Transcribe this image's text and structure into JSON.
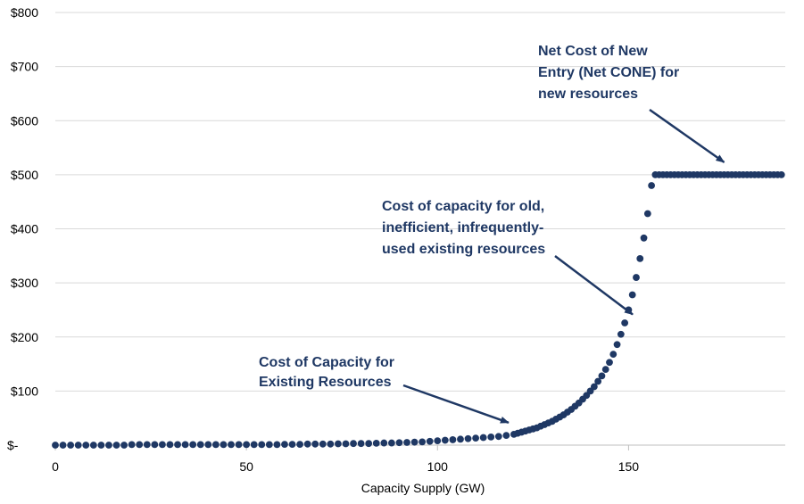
{
  "chart_data": {
    "type": "scatter",
    "title": "",
    "xlabel": "Capacity Supply (GW)",
    "ylabel": "",
    "xlim": [
      0,
      191
    ],
    "ylim": [
      0,
      800
    ],
    "x_ticks": [
      0,
      50,
      100,
      150
    ],
    "x_tick_labels": [
      "0",
      "50",
      "100",
      "150"
    ],
    "y_ticks": [
      0,
      100,
      200,
      300,
      400,
      500,
      600,
      700,
      800
    ],
    "y_tick_labels": [
      "$-",
      "$100",
      "$200",
      "$300",
      "$400",
      "$500",
      "$600",
      "$700",
      "$800"
    ],
    "grid": "horizontal",
    "legend": "none",
    "colors": {
      "points": "#1f3864",
      "annotations": "#1f3864",
      "grid": "#d9d9d9",
      "axis": "#bfbfbf"
    },
    "series": [
      {
        "points": [
          [
            0,
            0.0
          ],
          [
            2,
            0.0
          ],
          [
            4,
            0.0
          ],
          [
            6,
            0.0
          ],
          [
            8,
            0.0
          ],
          [
            10,
            0.0
          ],
          [
            12,
            0.0
          ],
          [
            14,
            0.0
          ],
          [
            16,
            0.0
          ],
          [
            18,
            0.0
          ],
          [
            20,
            1.0
          ],
          [
            22,
            1.0
          ],
          [
            24,
            1.0
          ],
          [
            26,
            1.0
          ],
          [
            28,
            1.0
          ],
          [
            30,
            1.0
          ],
          [
            32,
            1.0
          ],
          [
            34,
            1.0
          ],
          [
            36,
            1.0
          ],
          [
            38,
            1.0
          ],
          [
            40,
            1.0
          ],
          [
            42,
            1.0
          ],
          [
            44,
            1.0
          ],
          [
            46,
            1.0
          ],
          [
            48,
            1.0
          ],
          [
            50,
            1.0
          ],
          [
            52,
            1.0
          ],
          [
            54,
            1.0
          ],
          [
            56,
            1.0
          ],
          [
            58,
            1.0
          ],
          [
            60,
            1.5
          ],
          [
            62,
            1.5
          ],
          [
            64,
            1.5
          ],
          [
            66,
            2.0
          ],
          [
            68,
            2.0
          ],
          [
            70,
            2.0
          ],
          [
            72,
            2.0
          ],
          [
            74,
            2.5
          ],
          [
            76,
            2.5
          ],
          [
            78,
            3.0
          ],
          [
            80,
            3.0
          ],
          [
            82,
            3.0
          ],
          [
            84,
            3.5
          ],
          [
            86,
            4.0
          ],
          [
            88,
            4.0
          ],
          [
            90,
            4.5
          ],
          [
            92,
            5.0
          ],
          [
            94,
            5.5
          ],
          [
            96,
            6.0
          ],
          [
            98,
            7.0
          ],
          [
            100,
            8.0
          ],
          [
            102,
            9.0
          ],
          [
            104,
            10.0
          ],
          [
            106,
            11.0
          ],
          [
            108,
            12.0
          ],
          [
            110,
            13.0
          ],
          [
            112,
            14.0
          ],
          [
            114,
            15.0
          ],
          [
            116,
            16.0
          ],
          [
            118,
            18.0
          ],
          [
            120,
            20.0
          ],
          [
            121,
            22.0
          ],
          [
            122,
            24.0
          ],
          [
            123,
            26.0
          ],
          [
            124,
            28.0
          ],
          [
            125,
            30.0
          ],
          [
            126,
            32.0
          ],
          [
            127,
            35.0
          ],
          [
            128,
            38.0
          ],
          [
            129,
            41.0
          ],
          [
            130,
            44.0
          ],
          [
            131,
            48.0
          ],
          [
            132,
            52.0
          ],
          [
            133,
            56.0
          ],
          [
            134,
            61.0
          ],
          [
            135,
            66.0
          ],
          [
            136,
            72.0
          ],
          [
            137,
            78.0
          ],
          [
            138,
            85.0
          ],
          [
            139,
            92.0
          ],
          [
            140,
            100.0
          ],
          [
            141,
            108.0
          ],
          [
            142,
            118.0
          ],
          [
            143,
            128.0
          ],
          [
            144,
            140.0
          ],
          [
            145,
            153.0
          ],
          [
            146,
            168.0
          ],
          [
            147,
            186.0
          ],
          [
            148,
            205.0
          ],
          [
            149,
            226.0
          ],
          [
            150,
            250.0
          ],
          [
            151,
            278.0
          ],
          [
            152,
            310.0
          ],
          [
            153,
            345.0
          ],
          [
            154,
            383.0
          ],
          [
            155,
            428.0
          ],
          [
            156,
            480.0
          ],
          [
            157,
            500.0
          ],
          [
            158,
            500.0
          ],
          [
            159,
            500.0
          ],
          [
            160,
            500.0
          ],
          [
            161,
            500.0
          ],
          [
            162,
            500.0
          ],
          [
            163,
            500.0
          ],
          [
            164,
            500.0
          ],
          [
            165,
            500.0
          ],
          [
            166,
            500.0
          ],
          [
            167,
            500.0
          ],
          [
            168,
            500.0
          ],
          [
            169,
            500.0
          ],
          [
            170,
            500.0
          ],
          [
            171,
            500.0
          ],
          [
            172,
            500.0
          ],
          [
            173,
            500.0
          ],
          [
            174,
            500.0
          ],
          [
            175,
            500.0
          ],
          [
            176,
            500.0
          ],
          [
            177,
            500.0
          ],
          [
            178,
            500.0
          ],
          [
            179,
            500.0
          ],
          [
            180,
            500.0
          ],
          [
            181,
            500.0
          ],
          [
            182,
            500.0
          ],
          [
            183,
            500.0
          ],
          [
            184,
            500.0
          ],
          [
            185,
            500.0
          ],
          [
            186,
            500.0
          ],
          [
            187,
            500.0
          ],
          [
            188,
            500.0
          ],
          [
            189,
            500.0
          ],
          [
            190,
            500.0
          ]
        ]
      }
    ],
    "annotations": [
      {
        "lines": [
          "Net Cost of New",
          "Entry (Net CONE) for",
          "new resources"
        ],
        "target": [
          175,
          500
        ]
      },
      {
        "lines": [
          "Cost of capacity for old,",
          "inefficient, infrequently-",
          "used existing resources"
        ],
        "target": [
          152,
          235
        ]
      },
      {
        "lines": [
          "Cost of Capacity for",
          "Existing Resources"
        ],
        "target": [
          120,
          35
        ]
      }
    ]
  }
}
